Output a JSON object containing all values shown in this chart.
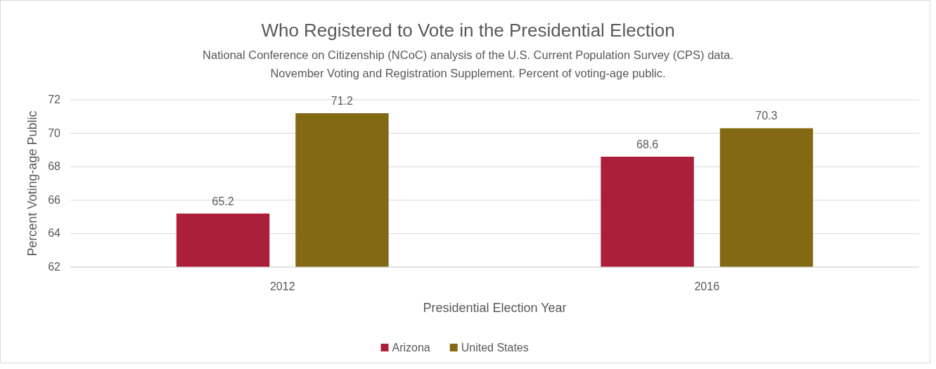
{
  "chart_data": {
    "type": "bar",
    "title": "Who Registered to Vote in the Presidential Election",
    "subtitle": "National Conference on Citizenship (NCoC) analysis of the U.S. Current Population Survey (CPS) data.\nNovember Voting and Registration Supplement. Percent of voting-age public.",
    "xlabel": "Presidential Election Year",
    "ylabel": "Percent Voting-age Public",
    "categories": [
      "2012",
      "2016"
    ],
    "series": [
      {
        "name": "Arizona",
        "color": "#ab1f3b",
        "values": [
          65.2,
          68.6
        ]
      },
      {
        "name": "United States",
        "color": "#846914",
        "values": [
          71.2,
          70.3
        ]
      }
    ],
    "ylim": [
      62,
      72
    ],
    "yticks": [
      62,
      64,
      66,
      68,
      70,
      72
    ],
    "grid": "y",
    "legend": "bottom",
    "data_labels": true
  }
}
